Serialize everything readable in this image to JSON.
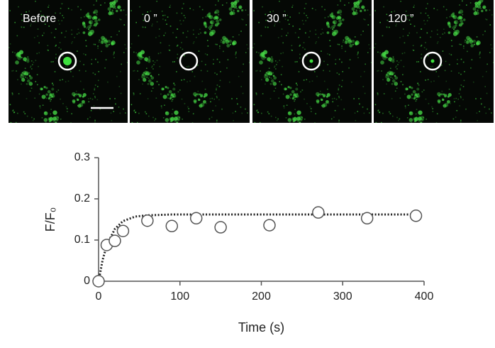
{
  "panels": [
    {
      "label": "Before"
    },
    {
      "label": "0 ”"
    },
    {
      "label": "30 ”"
    },
    {
      "label": "120 ”"
    }
  ],
  "chart_data": {
    "type": "scatter",
    "x_label": "Time (s)",
    "y_label": "F/F₀",
    "xlim": [
      0,
      400
    ],
    "ylim": [
      0,
      0.3
    ],
    "xticks": [
      0,
      100,
      200,
      300,
      400
    ],
    "yticks": [
      0,
      0.1,
      0.2,
      0.3
    ],
    "points": {
      "x": [
        0,
        10,
        20,
        30,
        60,
        90,
        120,
        150,
        210,
        270,
        330,
        390
      ],
      "values": [
        0,
        0.088,
        0.098,
        0.122,
        0.147,
        0.134,
        0.153,
        0.131,
        0.136,
        0.167,
        0.153,
        0.159
      ]
    },
    "fit": {
      "x": [
        0,
        5,
        10,
        20,
        30,
        45,
        60,
        90,
        120,
        200,
        300,
        390
      ],
      "values": [
        0,
        0.052,
        0.087,
        0.127,
        0.146,
        0.157,
        0.16,
        0.162,
        0.162,
        0.162,
        0.162,
        0.162
      ]
    }
  }
}
